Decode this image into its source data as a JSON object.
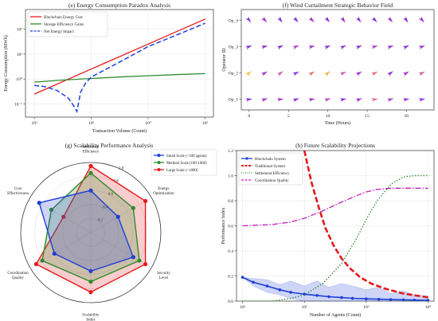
{
  "chart_data": [
    {
      "id": "e",
      "type": "line",
      "title": "(e) Energy Consumption Paradox Analysis",
      "xlabel": "Transaction Volume (Count)",
      "ylabel": "Energy Consumption (MWh)",
      "x_scale": "log",
      "y_scale": "log",
      "xlim": [
        70,
        140000
      ],
      "ylim": [
        0.03,
        600
      ],
      "x_ticks": [
        {
          "v": 100,
          "label": "10²"
        },
        {
          "v": 1000,
          "label": "10³"
        },
        {
          "v": 10000,
          "label": "10⁴"
        },
        {
          "v": 100000,
          "label": "10⁵"
        }
      ],
      "y_ticks": [
        {
          "v": 0.1,
          "label": "10⁻¹"
        },
        {
          "v": 1,
          "label": "10⁰"
        },
        {
          "v": 10,
          "label": "10¹"
        },
        {
          "v": 100,
          "label": "10²"
        }
      ],
      "legend_position": "top-left",
      "series": [
        {
          "name": "Blockchain Energy Cost",
          "color": "#e41a1c",
          "style": "solid",
          "x": [
            100,
            1000,
            10000,
            100000
          ],
          "y": [
            0.25,
            2.5,
            25,
            250
          ]
        },
        {
          "name": "Storage Efficiency Gains",
          "color": "#2e8b2e",
          "style": "solid",
          "x": [
            100,
            300,
            1000,
            3000,
            10000,
            30000,
            100000
          ],
          "y": [
            0.75,
            0.9,
            1.05,
            1.2,
            1.35,
            1.5,
            1.65
          ]
        },
        {
          "name": "Net Energy Impact",
          "color": "#1f3fd6",
          "style": "dashed",
          "x": [
            100,
            150,
            250,
            400,
            500,
            560,
            650,
            800,
            1000,
            3000,
            10000,
            30000,
            100000
          ],
          "y": [
            0.55,
            0.5,
            0.35,
            0.17,
            0.08,
            0.05,
            0.3,
            0.7,
            1.2,
            4.5,
            20,
            55,
            170
          ]
        }
      ]
    },
    {
      "id": "f",
      "type": "quiver",
      "title": "(f) Wind Curtailment Strategic Behavior Field",
      "xlabel": "Time (Hours)",
      "ylabel": "Operator ID",
      "xlim": [
        -1,
        23.5
      ],
      "ylim": [
        0.6,
        4.4
      ],
      "x_ticks": [
        0,
        5,
        10,
        15,
        20
      ],
      "y_tick_labels": [
        "Op_1",
        "Op_2",
        "Op_3",
        "Op_4"
      ],
      "x_positions": [
        0,
        2,
        4,
        6,
        8,
        10,
        12,
        14,
        16,
        18,
        20,
        22
      ],
      "rows": [
        {
          "op": 1,
          "colors": [
            "#8a2be2",
            "#9932cc",
            "#a340c0",
            "#8a2be2",
            "#9932cc",
            "#b04ab8",
            "#8a2be2",
            "#9932cc",
            "#e0707a",
            "#a340c0",
            "#9932cc",
            "#8a2be2"
          ],
          "angles": [
            10,
            15,
            5,
            20,
            10,
            15,
            10,
            20,
            5,
            15,
            10,
            10
          ]
        },
        {
          "op": 2,
          "colors": [
            "#f5c242",
            "#9932cc",
            "#c060a0",
            "#8a2be2",
            "#e07070",
            "#f0b040",
            "#c060a0",
            "#9932cc",
            "#e07070",
            "#8a2be2",
            "#9932cc",
            "#c060a0"
          ],
          "angles": [
            40,
            30,
            35,
            25,
            30,
            40,
            20,
            30,
            25,
            35,
            30,
            25
          ]
        },
        {
          "op": 3,
          "colors": [
            "#8a2be2",
            "#9932cc",
            "#8a2be2",
            "#a340c0",
            "#9932cc",
            "#8a2be2",
            "#9932cc",
            "#8a2be2",
            "#a340c0",
            "#9932cc",
            "#8a2be2",
            "#9932cc"
          ],
          "angles": [
            20,
            15,
            25,
            20,
            15,
            20,
            25,
            20,
            15,
            20,
            25,
            20
          ]
        },
        {
          "op": 4,
          "colors": [
            "#8a2be2",
            "#9932cc",
            "#8a2be2",
            "#7b2fd6",
            "#9932cc",
            "#8a2be2",
            "#9932cc",
            "#8a2be2",
            "#7b2fd6",
            "#9932cc",
            "#8a2be2",
            "#9932cc"
          ],
          "angles": [
            -50,
            -45,
            -55,
            -50,
            -45,
            -50,
            -55,
            -50,
            -45,
            -50,
            -55,
            -50
          ]
        }
      ]
    },
    {
      "id": "g",
      "type": "radar",
      "title": "(g) Scalability Performance Analysis",
      "axes": [
        "Cost\nEffectiveness",
        "Settlement\nEfficiency",
        "Energy\nOptimization",
        "Security\nLevel",
        "Scalability\nIndex",
        "Coordination\nQuality"
      ],
      "r_ticks": [
        0.2,
        0.4,
        0.6,
        0.8,
        1.0
      ],
      "r_tick_labels": [
        "0.2",
        "0.4",
        "0.6",
        "0.8",
        "1.0"
      ],
      "series": [
        {
          "name": "Small Scale (<100 agents)",
          "color": "#1f3fd6",
          "values": [
            0.85,
            0.6,
            0.45,
            0.7,
            0.55,
            0.6
          ]
        },
        {
          "name": "Medium Scale (100-1000)",
          "color": "#2e8b2e",
          "values": [
            0.65,
            0.85,
            0.7,
            0.8,
            0.7,
            0.8
          ]
        },
        {
          "name": "Large Scale (>1000)",
          "color": "#e41a1c",
          "values": [
            0.45,
            0.95,
            0.9,
            0.9,
            0.85,
            0.9
          ]
        }
      ]
    },
    {
      "id": "h",
      "type": "line",
      "title": "(h) Future Scalability Projections",
      "xlabel": "Number of Agents (Count)",
      "ylabel": "Performance Index",
      "x_scale": "log",
      "xlim": [
        8,
        12500
      ],
      "ylim": [
        0,
        1.2
      ],
      "x_ticks": [
        {
          "v": 10,
          "label": "10¹"
        },
        {
          "v": 100,
          "label": "10²"
        },
        {
          "v": 1000,
          "label": "10³"
        },
        {
          "v": 10000,
          "label": "10⁴"
        }
      ],
      "y_ticks": [
        0.0,
        0.2,
        0.4,
        0.6,
        0.8,
        1.0,
        1.2
      ],
      "legend_position": "top-left",
      "series": [
        {
          "name": "Blockchain System",
          "color": "#1f3fd6",
          "style": "solid-markers",
          "x": [
            10,
            15,
            25,
            40,
            60,
            100,
            160,
            250,
            400,
            600,
            1000,
            1600,
            2500,
            4000,
            6000,
            10000
          ],
          "y": [
            0.19,
            0.15,
            0.12,
            0.09,
            0.07,
            0.055,
            0.045,
            0.035,
            0.028,
            0.022,
            0.018,
            0.015,
            0.012,
            0.01,
            0.008,
            0.006
          ],
          "band_upper": [
            0.19,
            0.18,
            0.17,
            0.13,
            0.16,
            0.12,
            0.16,
            0.11,
            0.14,
            0.12,
            0.09,
            0.11,
            0.06,
            0.08,
            0.05,
            0.04
          ],
          "band_lower": [
            0.19,
            0.12,
            0.07,
            0.05,
            0.02,
            0.0,
            0.0,
            0.0,
            0.0,
            0.0,
            0.0,
            0.0,
            0.0,
            0.0,
            0.0,
            0.0
          ]
        },
        {
          "name": "Traditional System",
          "color": "#e41a1c",
          "style": "thick-dashed",
          "x": [
            100,
            130,
            170,
            220,
            300,
            400,
            550,
            800,
            1200,
            2000,
            4000,
            10000
          ],
          "y": [
            1.2,
            0.95,
            0.75,
            0.58,
            0.44,
            0.34,
            0.26,
            0.19,
            0.14,
            0.1,
            0.06,
            0.03
          ]
        },
        {
          "name": "Settlement Efficiency",
          "color": "#2e8b2e",
          "style": "dotted",
          "x": [
            10,
            30,
            60,
            100,
            200,
            400,
            700,
            1000,
            1500,
            2500,
            4000,
            6000,
            10000
          ],
          "y": [
            0.0,
            0.0,
            0.02,
            0.05,
            0.14,
            0.3,
            0.5,
            0.65,
            0.8,
            0.93,
            0.99,
            1.0,
            1.0
          ]
        },
        {
          "name": "Coordination Quality",
          "color": "#c020c0",
          "style": "dashdot",
          "x": [
            10,
            30,
            60,
            100,
            200,
            400,
            700,
            1000,
            1500,
            2500,
            4000,
            10000
          ],
          "y": [
            0.6,
            0.61,
            0.63,
            0.66,
            0.72,
            0.79,
            0.84,
            0.87,
            0.89,
            0.9,
            0.9,
            0.9
          ]
        }
      ]
    }
  ]
}
